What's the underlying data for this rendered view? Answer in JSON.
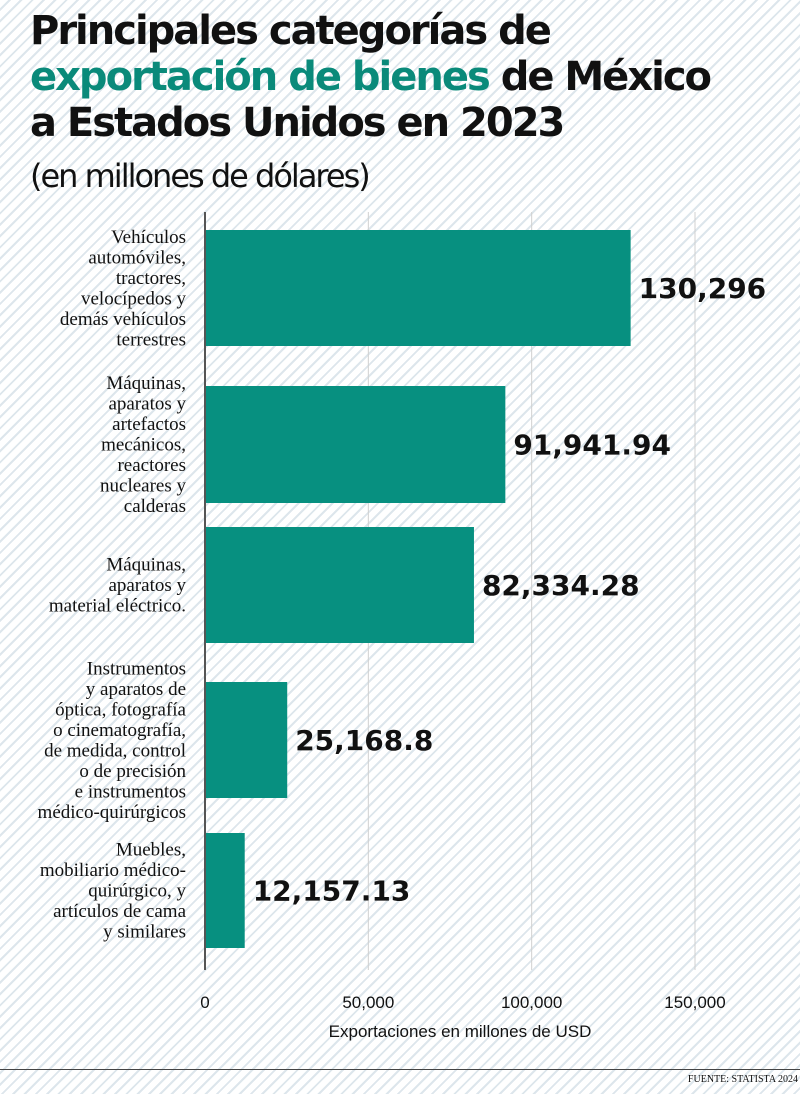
{
  "title": {
    "line1": "Principales categorías de",
    "accent": "exportación de bienes",
    "line2_rest": " de México",
    "line3": "a Estados Unidos en 2023"
  },
  "subtitle": "(en millones de dólares)",
  "colors": {
    "bar": "#079080",
    "accent_text": "#0a8a7a",
    "grid": "#d0d0d0"
  },
  "chart_data": {
    "type": "bar",
    "orientation": "horizontal",
    "categories": [
      [
        "Vehículos",
        "automóviles,",
        "tractores,",
        "velocípedos y",
        "demás vehículos",
        "terrestres"
      ],
      [
        "Máquinas,",
        "aparatos y",
        "artefactos",
        "mecánicos,",
        "reactores",
        "nucleares y",
        "calderas"
      ],
      [
        "Máquinas,",
        "aparatos y",
        "material eléctrico."
      ],
      [
        "Instrumentos",
        "y aparatos de",
        "óptica, fotografía",
        "o cinematografía,",
        "de medida, control",
        "o de precisión",
        "e instrumentos",
        "médico-quirúrgicos"
      ],
      [
        "Muebles,",
        "mobiliario médico-",
        "quirúrgico, y",
        "artículos de cama",
        "y similares"
      ]
    ],
    "values": [
      130296,
      91941.94,
      82334.28,
      25168.8,
      12157.13
    ],
    "value_labels": [
      "130,296",
      "91,941.94",
      "82,334.28",
      "25,168.8",
      "12,157.13"
    ],
    "xlim": [
      0,
      150000
    ],
    "xticks": [
      0,
      50000,
      100000,
      150000
    ],
    "xtick_labels": [
      "0",
      "50,000",
      "100,000",
      "150,000"
    ],
    "xlabel": "Exportaciones en millones de USD",
    "grid": true
  },
  "source": "FUENTE: STATISTA 2024"
}
